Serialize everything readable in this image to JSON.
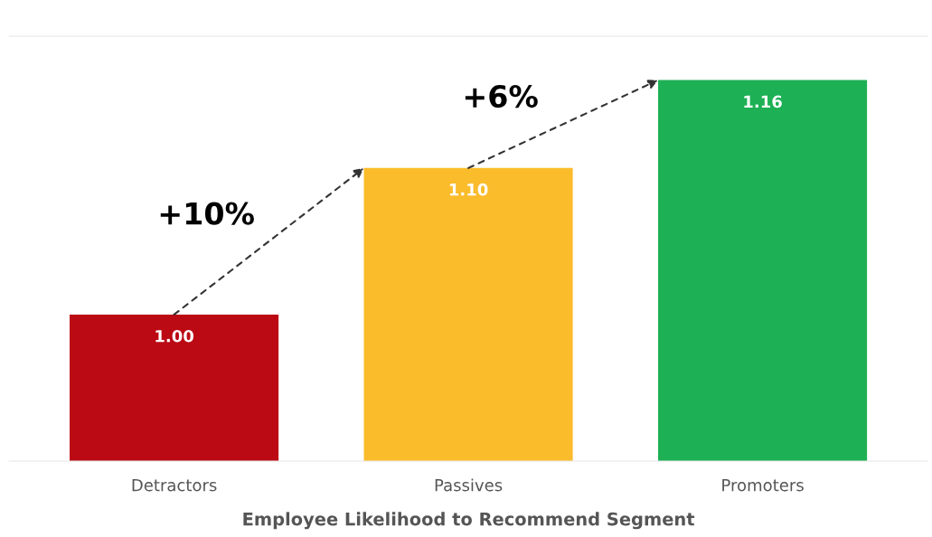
{
  "chart_data": {
    "type": "bar",
    "xlabel": "Employee Likelihood to Recommend Segment",
    "categories": [
      "Detractors",
      "Passives",
      "Promoters"
    ],
    "values": [
      1.0,
      1.1,
      1.16
    ],
    "value_labels": [
      "1.00",
      "1.10",
      "1.16"
    ],
    "colors": [
      "#bb0a14",
      "#fbbc2c",
      "#1db054"
    ],
    "ylim": [
      0.9,
      1.19
    ],
    "tick_labels": "x",
    "grid": false,
    "legend": false,
    "annotations": [
      "+10%",
      "+6%"
    ]
  }
}
